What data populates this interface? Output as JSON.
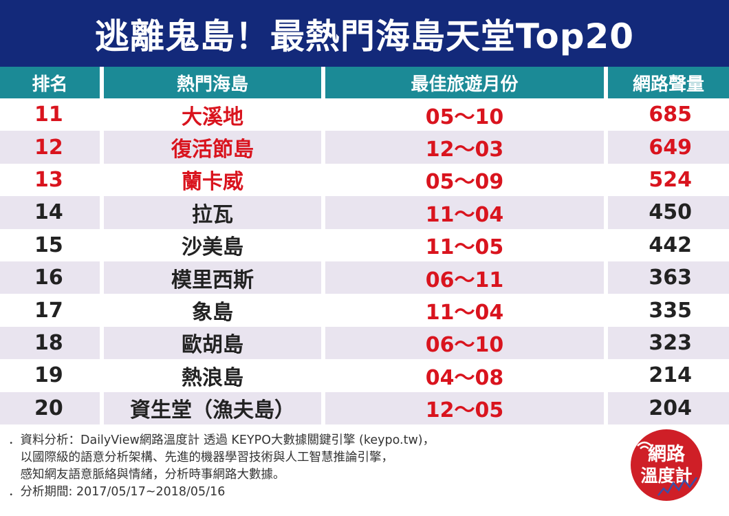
{
  "title": "逃離鬼島！最熱門海島天堂Top20",
  "chart_data": {
    "type": "table",
    "columns": [
      "排名",
      "熱門海島",
      "最佳旅遊月份",
      "網路聲量"
    ],
    "rows": [
      {
        "rank": "11",
        "island": "大溪地",
        "months": "05～10",
        "volume": 685,
        "highlight": true
      },
      {
        "rank": "12",
        "island": "復活節島",
        "months": "12～03",
        "volume": 649,
        "highlight": true
      },
      {
        "rank": "13",
        "island": "蘭卡威",
        "months": "05～09",
        "volume": 524,
        "highlight": true
      },
      {
        "rank": "14",
        "island": "拉瓦",
        "months": "11～04",
        "volume": 450,
        "highlight": false
      },
      {
        "rank": "15",
        "island": "沙美島",
        "months": "11～05",
        "volume": 442,
        "highlight": false
      },
      {
        "rank": "16",
        "island": "模里西斯",
        "months": "06～11",
        "volume": 363,
        "highlight": false
      },
      {
        "rank": "17",
        "island": "象島",
        "months": "11～04",
        "volume": 335,
        "highlight": false
      },
      {
        "rank": "18",
        "island": "歐胡島",
        "months": "06～10",
        "volume": 323,
        "highlight": false
      },
      {
        "rank": "19",
        "island": "熱浪島",
        "months": "04～08",
        "volume": 214,
        "highlight": false
      },
      {
        "rank": "20",
        "island": "資生堂（漁夫島）",
        "months": "12～05",
        "volume": 204,
        "highlight": false
      }
    ]
  },
  "footer": {
    "lines": [
      "．資料分析：DailyView網路溫度計 透過 KEYPO大數據關鍵引擎 (keypo.tw)，",
      "　以國際級的語意分析架構、先進的機器學習技術與人工智慧推論引擎，",
      "　感知網友語意脈絡與情緒，分析時事網路大數據。",
      "．分析期間: 2017/05/17~2018/05/16"
    ]
  },
  "badge": {
    "line1": "網路",
    "line2": "溫度計"
  },
  "colors": {
    "title_bg": "#13297a",
    "header_bg": "#1b8a96",
    "highlight": "#d9141e",
    "row_alt": "#e9e4ef",
    "badge": "#cf1f27"
  }
}
